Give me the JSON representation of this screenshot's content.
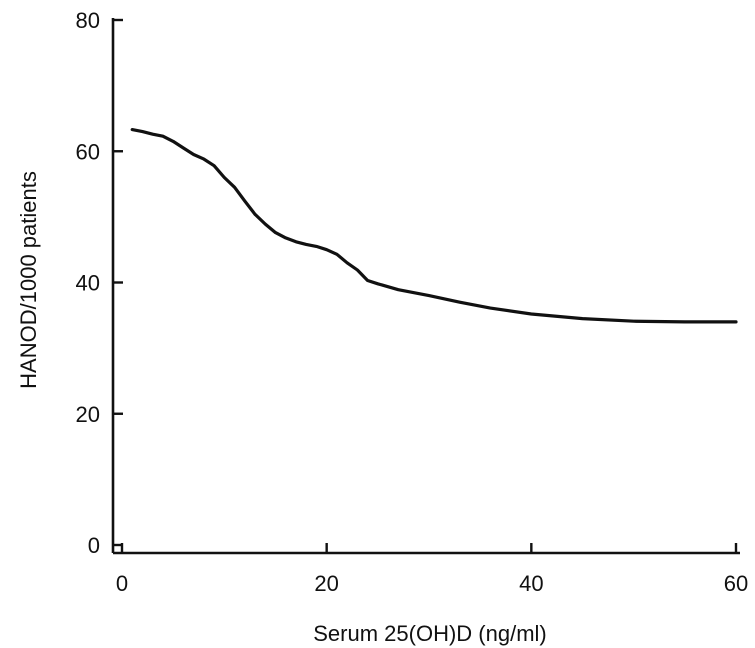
{
  "chart_data": {
    "type": "line",
    "title": "",
    "xlabel": "Serum 25(OH)D (ng/ml)",
    "ylabel": "HANOD/1000 patients",
    "xlim": [
      0,
      60
    ],
    "ylim": [
      0,
      80
    ],
    "xticks": [
      0,
      20,
      40,
      60
    ],
    "yticks": [
      0,
      20,
      40,
      60,
      80
    ],
    "grid": false,
    "line_color": "#111111",
    "series": [
      {
        "x": [
          1,
          2,
          3,
          4,
          5,
          6,
          7,
          8,
          9,
          10,
          11,
          12,
          13,
          14,
          15,
          16,
          17,
          18,
          19,
          20,
          21,
          22,
          23,
          24,
          25,
          27,
          30,
          33,
          36,
          40,
          45,
          50,
          55,
          60
        ],
        "y": [
          63.3,
          63.0,
          62.6,
          62.3,
          61.5,
          60.5,
          59.5,
          58.8,
          57.8,
          56.0,
          54.5,
          52.4,
          50.4,
          48.9,
          47.6,
          46.8,
          46.2,
          45.8,
          45.5,
          45.0,
          44.3,
          43.0,
          41.9,
          40.3,
          39.8,
          38.9,
          38.0,
          37.0,
          36.1,
          35.2,
          34.5,
          34.1,
          34.0,
          34.0
        ]
      }
    ]
  }
}
